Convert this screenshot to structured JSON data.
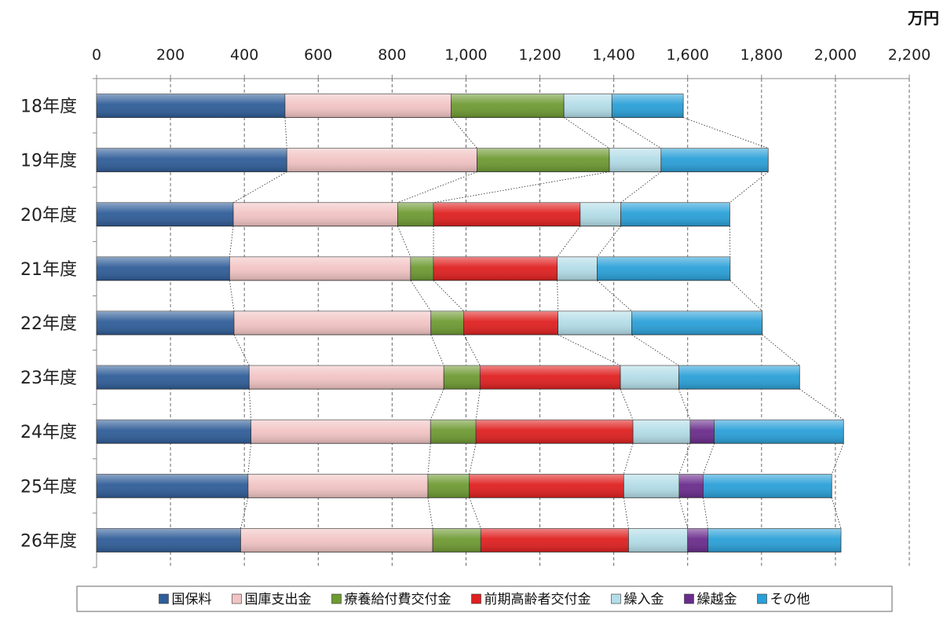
{
  "chart_data": {
    "type": "bar",
    "orientation": "horizontal",
    "stacked": true,
    "unit": "万円",
    "xlim": [
      0,
      2200
    ],
    "xticks": [
      "0",
      "200",
      "400",
      "600",
      "800",
      "1,000",
      "1,200",
      "1,400",
      "1,600",
      "1,800",
      "2,000",
      "2,200"
    ],
    "grid": true,
    "legend_position": "bottom",
    "categories": [
      "18年度",
      "19年度",
      "20年度",
      "21年度",
      "22年度",
      "23年度",
      "24年度",
      "25年度",
      "26年度"
    ],
    "series": [
      {
        "name": "国保料",
        "color": "#2f5d98",
        "values": [
          510,
          515,
          370,
          360,
          372,
          413,
          418,
          410,
          390
        ]
      },
      {
        "name": "国庫支出金",
        "color": "#f2c4c4",
        "values": [
          450,
          515,
          445,
          490,
          533,
          527,
          486,
          487,
          520
        ]
      },
      {
        "name": "療養給付費交付金",
        "color": "#6e9a32",
        "values": [
          305,
          358,
          97,
          62,
          89,
          98,
          123,
          112,
          130
        ]
      },
      {
        "name": "前期高齢者交付金",
        "color": "#e02020",
        "values": [
          0,
          0,
          397,
          335,
          255,
          380,
          425,
          418,
          400
        ]
      },
      {
        "name": "繰入金",
        "color": "#b3dde8",
        "values": [
          130,
          140,
          110,
          108,
          200,
          158,
          155,
          150,
          160
        ]
      },
      {
        "name": "繰越金",
        "color": "#6a2c8c",
        "values": [
          0,
          0,
          0,
          0,
          0,
          0,
          65,
          65,
          55
        ]
      },
      {
        "name": "その他",
        "color": "#2aa0d8",
        "values": [
          193,
          290,
          295,
          360,
          353,
          327,
          350,
          348,
          360
        ]
      }
    ]
  }
}
